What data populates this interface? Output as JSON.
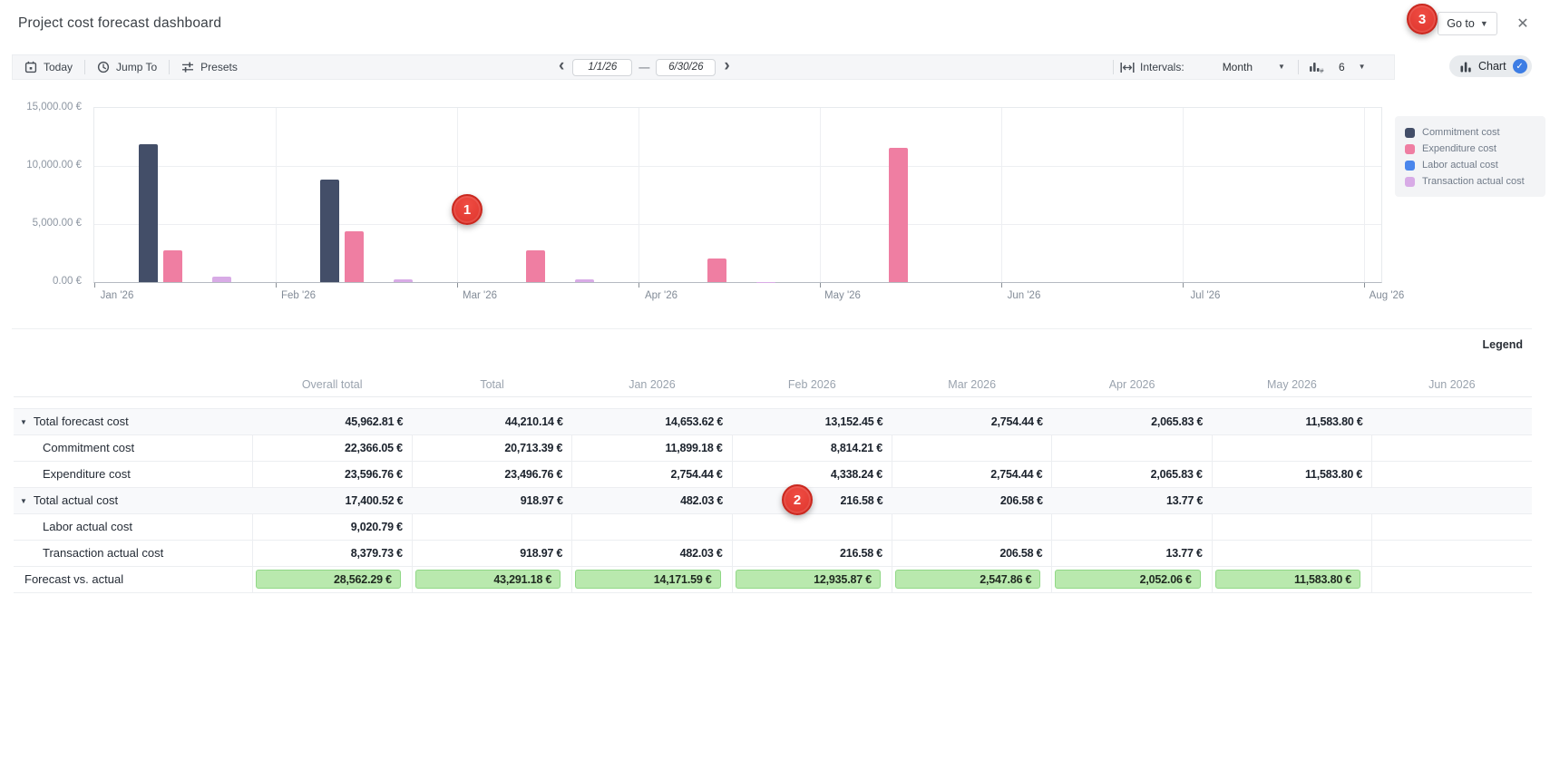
{
  "window": {
    "title": "Project cost forecast dashboard"
  },
  "header": {
    "goto_label": "Go to"
  },
  "callouts": {
    "1": "1",
    "2": "2",
    "3": "3"
  },
  "icons": {
    "close": "✕",
    "caret_down": "▼",
    "chevron_left": "‹",
    "chevron_right": "›",
    "dash": "—",
    "check": "✓",
    "row_expanded": "▼"
  },
  "toolbar": {
    "today_label": "Today",
    "jump_to_label": "Jump To",
    "presets_label": "Presets",
    "date_from": "1/1/26",
    "date_to": "6/30/26",
    "intervals_label": "Intervals:",
    "interval_value": "Month",
    "bar_count": "6",
    "chart_label": "Chart"
  },
  "chart_data": {
    "type": "bar",
    "unit": "€",
    "ylim": [
      0,
      15000
    ],
    "grid": true,
    "legend_position": "right",
    "categories": [
      "Jan '26",
      "Feb '26",
      "Mar '26",
      "Apr '26",
      "May '26",
      "Jun '26",
      "Jul '26",
      "Aug '26"
    ],
    "yticks": [
      {
        "value": 0,
        "label": "0.00 €"
      },
      {
        "value": 5000,
        "label": "5,000.00 €"
      },
      {
        "value": 10000,
        "label": "10,000.00 €"
      },
      {
        "value": 15000,
        "label": "15,000.00 €"
      }
    ],
    "series": [
      {
        "name": "Commitment cost",
        "color": "#434e68",
        "values": [
          11899.18,
          8814.21,
          null,
          null,
          null,
          null,
          null,
          null
        ]
      },
      {
        "name": "Expenditure cost",
        "color": "#ef7ea2",
        "values": [
          2754.44,
          4338.24,
          2754.44,
          2065.83,
          11583.8,
          null,
          null,
          null
        ]
      },
      {
        "name": "Labor actual cost",
        "color": "#4a86ec",
        "values": [
          null,
          null,
          null,
          null,
          null,
          null,
          null,
          null
        ]
      },
      {
        "name": "Transaction actual cost",
        "color": "#d8abe6",
        "values": [
          482.03,
          216.58,
          206.58,
          13.77,
          null,
          null,
          null,
          null
        ]
      }
    ]
  },
  "legend_panel": {
    "toggle_label": "Legend"
  },
  "table": {
    "columns": [
      "",
      "Overall total",
      "Total",
      "Jan 2026",
      "Feb 2026",
      "Mar 2026",
      "Apr 2026",
      "May 2026",
      "Jun 2026"
    ],
    "rows": [
      {
        "label": "Total forecast cost",
        "type": "group",
        "expanded": true,
        "values": [
          "45,962.81 €",
          "44,210.14 €",
          "14,653.62 €",
          "13,152.45 €",
          "2,754.44 €",
          "2,065.83 €",
          "11,583.80 €",
          ""
        ]
      },
      {
        "label": "Commitment cost",
        "type": "sub",
        "values": [
          "22,366.05 €",
          "20,713.39 €",
          "11,899.18 €",
          "8,814.21 €",
          "",
          "",
          "",
          ""
        ]
      },
      {
        "label": "Expenditure cost",
        "type": "sub",
        "values": [
          "23,596.76 €",
          "23,496.76 €",
          "2,754.44 €",
          "4,338.24 €",
          "2,754.44 €",
          "2,065.83 €",
          "11,583.80 €",
          ""
        ]
      },
      {
        "label": "Total actual cost",
        "type": "group",
        "expanded": true,
        "values": [
          "17,400.52 €",
          "918.97 €",
          "482.03 €",
          "216.58 €",
          "206.58 €",
          "13.77 €",
          "",
          ""
        ]
      },
      {
        "label": "Labor actual cost",
        "type": "sub",
        "values": [
          "9,020.79 €",
          "",
          "",
          "",
          "",
          "",
          "",
          ""
        ]
      },
      {
        "label": "Transaction actual cost",
        "type": "sub",
        "values": [
          "8,379.73 €",
          "918.97 €",
          "482.03 €",
          "216.58 €",
          "206.58 €",
          "13.77 €",
          "",
          ""
        ]
      },
      {
        "label": "Forecast vs. actual",
        "type": "highlight",
        "values": [
          "28,562.29 €",
          "43,291.18 €",
          "14,171.59 €",
          "12,935.87 €",
          "2,547.86 €",
          "2,052.06 €",
          "11,583.80 €",
          ""
        ]
      }
    ]
  }
}
